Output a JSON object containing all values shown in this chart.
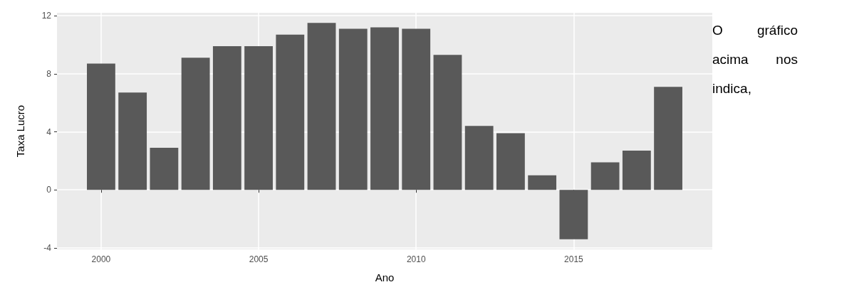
{
  "chart_data": {
    "type": "bar",
    "xlabel": "Ano",
    "ylabel": "Taxa Lucro",
    "x": [
      2000,
      2001,
      2002,
      2003,
      2004,
      2005,
      2006,
      2007,
      2008,
      2009,
      2010,
      2011,
      2012,
      2013,
      2014,
      2015,
      2016,
      2017,
      2018
    ],
    "values": [
      8.7,
      6.7,
      2.9,
      9.1,
      9.9,
      9.9,
      10.7,
      11.5,
      11.1,
      11.2,
      11.1,
      9.3,
      4.4,
      3.9,
      1.0,
      -3.4,
      1.9,
      2.7,
      7.1
    ],
    "color": "#595959",
    "xlim": [
      1998.6,
      2019.4
    ],
    "xticks": [
      2000,
      2005,
      2010,
      2015
    ],
    "ylim": [
      -4.1,
      12.2
    ],
    "yticks": [
      -4,
      0,
      4,
      8,
      12
    ],
    "grid": true,
    "annotations": [
      "O gráfico acima nos indica,"
    ]
  }
}
